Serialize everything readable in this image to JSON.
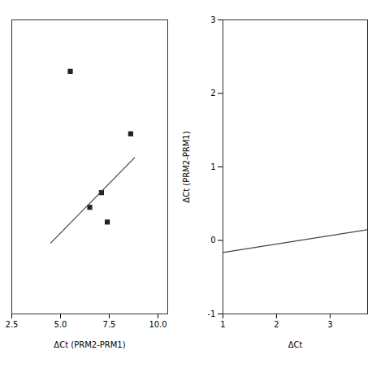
{
  "chart_data": [
    {
      "type": "scatter",
      "xlabel": "ΔCt (PRM2-PRM1)",
      "series": [
        {
          "type": "scatter",
          "x": [
            5.5,
            6.5,
            7.1,
            7.4,
            8.6
          ],
          "values": [
            2.5,
            0.65,
            0.85,
            0.45,
            1.65
          ],
          "marker": "square",
          "color": "#222222"
        },
        {
          "type": "line",
          "x": [
            4.5,
            8.8
          ],
          "values": [
            0.165,
            1.326
          ],
          "color": "#444444"
        }
      ],
      "xlim": [
        2.5,
        10.5
      ],
      "xticks": [
        2.5,
        {
          "value": 5,
          "label": "5.0"
        },
        7.5,
        {
          "value": 10,
          "label": "10.0"
        }
      ],
      "ylim": [
        -0.8,
        3.2
      ],
      "tick_labels": "x"
    },
    {
      "type": "line",
      "xlabel": "ΔCt",
      "ylabel": "ΔCt (PRM2-PRM1)",
      "x": [
        1.0,
        3.7
      ],
      "values": [
        -0.165,
        0.1455
      ],
      "color": "#444444",
      "xlim": [
        1.0,
        3.7
      ],
      "xticks": [
        1,
        2,
        3
      ],
      "ylim": [
        -1.0,
        3.0
      ],
      "yticks": [
        -1,
        0,
        1,
        2,
        3
      ]
    }
  ]
}
